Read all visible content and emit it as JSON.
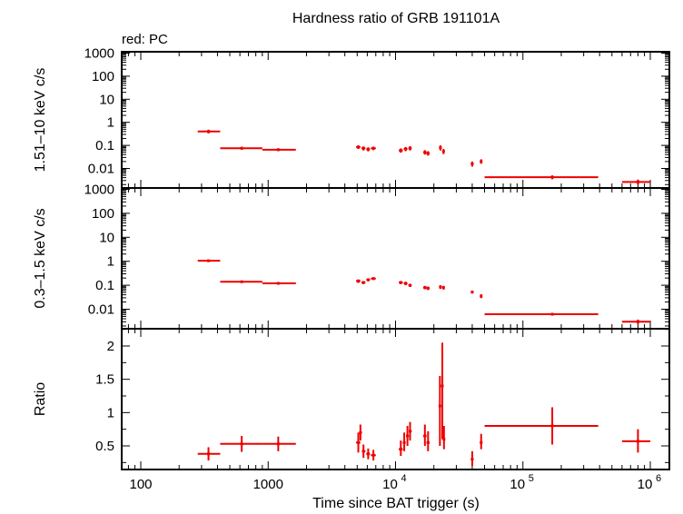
{
  "title": "Hardness ratio of GRB 191101A",
  "legend_note": "red: PC",
  "colors": {
    "data": "#ee0000",
    "axes": "#000000",
    "background": "#ffffff"
  },
  "chart_data": [
    {
      "panel": "hard-band",
      "type": "scatter",
      "ylabel": "1.51–10 keV c/s",
      "yscale": "log",
      "ylim": [
        0.003,
        1000
      ],
      "ytick_labels": [
        "1000",
        "100",
        "10",
        "1",
        "0.1",
        "0.01"
      ],
      "xscale": "log",
      "xlim": [
        65,
        1150000
      ],
      "points": [
        {
          "x": 340,
          "xerr": [
            280,
            420
          ],
          "y": 0.4,
          "yerr": [
            0.33,
            0.48
          ]
        },
        {
          "x": 620,
          "xerr": [
            420,
            900
          ],
          "y": 0.075,
          "yerr": [
            0.065,
            0.087
          ]
        },
        {
          "x": 1200,
          "xerr": [
            900,
            1650
          ],
          "y": 0.065,
          "yerr": [
            0.056,
            0.075
          ]
        },
        {
          "x": 5100,
          "xerr": [
            4900,
            5300
          ],
          "y": 0.085,
          "yerr": [
            0.07,
            0.1
          ]
        },
        {
          "x": 5600,
          "xerr": [
            5400,
            5800
          ],
          "y": 0.075,
          "yerr": [
            0.06,
            0.09
          ]
        },
        {
          "x": 6100,
          "xerr": [
            5900,
            6300
          ],
          "y": 0.068,
          "yerr": [
            0.055,
            0.082
          ]
        },
        {
          "x": 6700,
          "xerr": [
            6400,
            7000
          ],
          "y": 0.075,
          "yerr": [
            0.062,
            0.088
          ]
        },
        {
          "x": 11000,
          "xerr": [
            10600,
            11400
          ],
          "y": 0.06,
          "yerr": [
            0.048,
            0.074
          ]
        },
        {
          "x": 12000,
          "xerr": [
            11600,
            12400
          ],
          "y": 0.07,
          "yerr": [
            0.056,
            0.085
          ]
        },
        {
          "x": 13000,
          "xerr": [
            12600,
            13400
          ],
          "y": 0.075,
          "yerr": [
            0.06,
            0.092
          ]
        },
        {
          "x": 17000,
          "xerr": [
            16500,
            17500
          ],
          "y": 0.05,
          "yerr": [
            0.04,
            0.062
          ]
        },
        {
          "x": 18000,
          "xerr": [
            17500,
            18500
          ],
          "y": 0.045,
          "yerr": [
            0.036,
            0.056
          ]
        },
        {
          "x": 22500,
          "xerr": [
            22000,
            23000
          ],
          "y": 0.08,
          "yerr": [
            0.06,
            0.1
          ]
        },
        {
          "x": 23800,
          "xerr": [
            23300,
            24300
          ],
          "y": 0.055,
          "yerr": [
            0.042,
            0.07
          ]
        },
        {
          "x": 40000,
          "xerr": [
            39000,
            41000
          ],
          "y": 0.016,
          "yerr": [
            0.012,
            0.02
          ]
        },
        {
          "x": 47000,
          "xerr": [
            46000,
            48000
          ],
          "y": 0.02,
          "yerr": [
            0.016,
            0.025
          ]
        },
        {
          "x": 170000,
          "xerr": [
            50000,
            390000
          ],
          "y": 0.0042,
          "yerr": [
            0.0034,
            0.005
          ]
        },
        {
          "x": 800000,
          "xerr": [
            600000,
            1000000
          ],
          "y": 0.0026,
          "yerr": [
            0.002,
            0.0033
          ]
        }
      ]
    },
    {
      "panel": "soft-band",
      "type": "scatter",
      "ylabel": "0.3–1.5 keV c/s",
      "yscale": "log",
      "ylim": [
        0.003,
        1000
      ],
      "ytick_labels": [
        "1000",
        "100",
        "10",
        "1",
        "0.1",
        "0.01"
      ],
      "xscale": "log",
      "xlim": [
        65,
        1150000
      ],
      "points": [
        {
          "x": 340,
          "xerr": [
            280,
            420
          ],
          "y": 1.05,
          "yerr": [
            0.95,
            1.15
          ]
        },
        {
          "x": 620,
          "xerr": [
            420,
            900
          ],
          "y": 0.14,
          "yerr": [
            0.125,
            0.155
          ]
        },
        {
          "x": 1200,
          "xerr": [
            900,
            1650
          ],
          "y": 0.12,
          "yerr": [
            0.105,
            0.135
          ]
        },
        {
          "x": 5100,
          "xerr": [
            4900,
            5300
          ],
          "y": 0.15,
          "yerr": [
            0.125,
            0.175
          ]
        },
        {
          "x": 5600,
          "xerr": [
            5400,
            5800
          ],
          "y": 0.13,
          "yerr": [
            0.11,
            0.15
          ]
        },
        {
          "x": 6100,
          "xerr": [
            5900,
            6300
          ],
          "y": 0.17,
          "yerr": [
            0.145,
            0.195
          ]
        },
        {
          "x": 6700,
          "xerr": [
            6400,
            7000
          ],
          "y": 0.19,
          "yerr": [
            0.165,
            0.215
          ]
        },
        {
          "x": 11000,
          "xerr": [
            10600,
            11400
          ],
          "y": 0.13,
          "yerr": [
            0.11,
            0.15
          ]
        },
        {
          "x": 12000,
          "xerr": [
            11600,
            12400
          ],
          "y": 0.12,
          "yerr": [
            0.1,
            0.14
          ]
        },
        {
          "x": 13000,
          "xerr": [
            12600,
            13400
          ],
          "y": 0.1,
          "yerr": [
            0.085,
            0.115
          ]
        },
        {
          "x": 17000,
          "xerr": [
            16500,
            17500
          ],
          "y": 0.08,
          "yerr": [
            0.068,
            0.094
          ]
        },
        {
          "x": 18000,
          "xerr": [
            17500,
            18500
          ],
          "y": 0.075,
          "yerr": [
            0.063,
            0.088
          ]
        },
        {
          "x": 22500,
          "xerr": [
            22000,
            23000
          ],
          "y": 0.085,
          "yerr": [
            0.07,
            0.1
          ]
        },
        {
          "x": 23800,
          "xerr": [
            23300,
            24300
          ],
          "y": 0.08,
          "yerr": [
            0.066,
            0.094
          ]
        },
        {
          "x": 40000,
          "xerr": [
            39000,
            41000
          ],
          "y": 0.052,
          "yerr": [
            0.045,
            0.06
          ]
        },
        {
          "x": 47000,
          "xerr": [
            46000,
            48000
          ],
          "y": 0.035,
          "yerr": [
            0.029,
            0.042
          ]
        },
        {
          "x": 170000,
          "xerr": [
            50000,
            390000
          ],
          "y": 0.0062,
          "yerr": [
            0.0054,
            0.007
          ]
        },
        {
          "x": 800000,
          "xerr": [
            600000,
            1000000
          ],
          "y": 0.003,
          "yerr": [
            0.0024,
            0.0037
          ]
        }
      ]
    },
    {
      "panel": "ratio",
      "type": "scatter",
      "ylabel": "Ratio",
      "xlabel": "Time since BAT trigger (s)",
      "yscale": "linear",
      "ylim": [
        0.15,
        2.3
      ],
      "ytick_labels": [
        "2",
        "1.5",
        "1",
        "0.5"
      ],
      "xscale": "log",
      "xlim": [
        65,
        1150000
      ],
      "xtick_labels": [
        "100",
        "1000",
        "10^4",
        "10^5",
        "10^6"
      ],
      "points": [
        {
          "x": 340,
          "xerr": [
            280,
            420
          ],
          "y": 0.38,
          "yerr": [
            0.28,
            0.48
          ]
        },
        {
          "x": 620,
          "xerr": [
            420,
            900
          ],
          "y": 0.53,
          "yerr": [
            0.41,
            0.65
          ]
        },
        {
          "x": 1200,
          "xerr": [
            900,
            1650
          ],
          "y": 0.53,
          "yerr": [
            0.42,
            0.64
          ]
        },
        {
          "x": 5100,
          "xerr": [
            4900,
            5300
          ],
          "y": 0.55,
          "yerr": [
            0.4,
            0.7
          ]
        },
        {
          "x": 5300,
          "xerr": [
            5200,
            5450
          ],
          "y": 0.7,
          "yerr": [
            0.58,
            0.82
          ]
        },
        {
          "x": 5600,
          "xerr": [
            5450,
            5800
          ],
          "y": 0.42,
          "yerr": [
            0.32,
            0.52
          ]
        },
        {
          "x": 6100,
          "xerr": [
            5900,
            6300
          ],
          "y": 0.38,
          "yerr": [
            0.3,
            0.46
          ]
        },
        {
          "x": 6700,
          "xerr": [
            6400,
            7000
          ],
          "y": 0.36,
          "yerr": [
            0.28,
            0.44
          ]
        },
        {
          "x": 11000,
          "xerr": [
            10600,
            11400
          ],
          "y": 0.45,
          "yerr": [
            0.35,
            0.58
          ]
        },
        {
          "x": 11700,
          "xerr": [
            11400,
            12000
          ],
          "y": 0.55,
          "yerr": [
            0.42,
            0.7
          ]
        },
        {
          "x": 12400,
          "xerr": [
            12100,
            12700
          ],
          "y": 0.65,
          "yerr": [
            0.5,
            0.8
          ]
        },
        {
          "x": 13000,
          "xerr": [
            12700,
            13400
          ],
          "y": 0.72,
          "yerr": [
            0.58,
            0.86
          ]
        },
        {
          "x": 17000,
          "xerr": [
            16500,
            17500
          ],
          "y": 0.65,
          "yerr": [
            0.5,
            0.82
          ]
        },
        {
          "x": 18000,
          "xerr": [
            17500,
            18500
          ],
          "y": 0.55,
          "yerr": [
            0.42,
            0.72
          ]
        },
        {
          "x": 22300,
          "xerr": [
            21900,
            22700
          ],
          "y": 1.1,
          "yerr": [
            0.5,
            1.55
          ]
        },
        {
          "x": 23300,
          "xerr": [
            22900,
            23700
          ],
          "y": 1.4,
          "yerr": [
            0.6,
            2.05
          ]
        },
        {
          "x": 24000,
          "xerr": [
            23600,
            24400
          ],
          "y": 0.6,
          "yerr": [
            0.45,
            0.8
          ]
        },
        {
          "x": 40000,
          "xerr": [
            39000,
            41000
          ],
          "y": 0.3,
          "yerr": [
            0.2,
            0.42
          ]
        },
        {
          "x": 47000,
          "xerr": [
            46000,
            48000
          ],
          "y": 0.55,
          "yerr": [
            0.45,
            0.68
          ]
        },
        {
          "x": 170000,
          "xerr": [
            50000,
            390000
          ],
          "y": 0.8,
          "yerr": [
            0.52,
            1.08
          ]
        },
        {
          "x": 800000,
          "xerr": [
            600000,
            1000000
          ],
          "y": 0.57,
          "yerr": [
            0.4,
            0.75
          ]
        }
      ]
    }
  ]
}
